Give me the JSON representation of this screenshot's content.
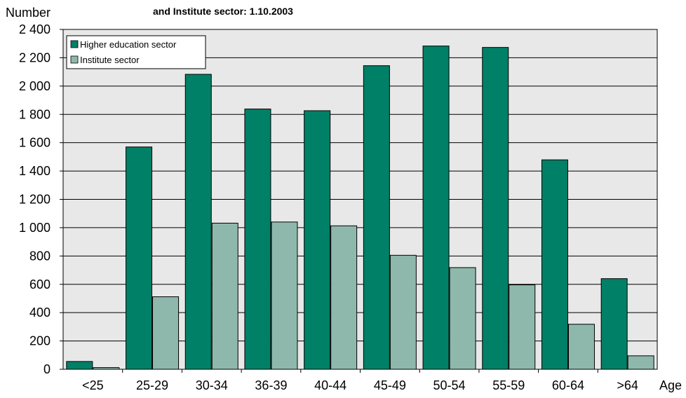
{
  "chart_data": {
    "type": "bar",
    "title": "and Institute sector: 1.10.2003",
    "ylabel": "Number",
    "xlabel": "Age",
    "categories": [
      "<25",
      "25-29",
      "30-34",
      "36-39",
      "40-44",
      "45-49",
      "50-54",
      "55-59",
      "60-64",
      ">64"
    ],
    "series": [
      {
        "name": "Higher education sector",
        "color": "#008066",
        "values": [
          55,
          1570,
          2083,
          1838,
          1826,
          2144,
          2283,
          2273,
          1479,
          640
        ]
      },
      {
        "name": "Institute sector",
        "color": "#8FB8AD",
        "values": [
          12,
          512,
          1032,
          1040,
          1013,
          805,
          718,
          596,
          318,
          95
        ]
      }
    ],
    "ylim": [
      0,
      2400
    ],
    "yticks": [
      0,
      200,
      400,
      600,
      800,
      1000,
      1200,
      1400,
      1600,
      1800,
      2000,
      2200,
      2400
    ],
    "ytick_labels": [
      "0",
      "200",
      "400",
      "600",
      "800",
      "1 000",
      "1 200",
      "1 400",
      "1 600",
      "1 800",
      "2 000",
      "2 200",
      "2 400"
    ],
    "grid": true,
    "legend": "top-left",
    "plot_background": "#E8E8E8"
  }
}
